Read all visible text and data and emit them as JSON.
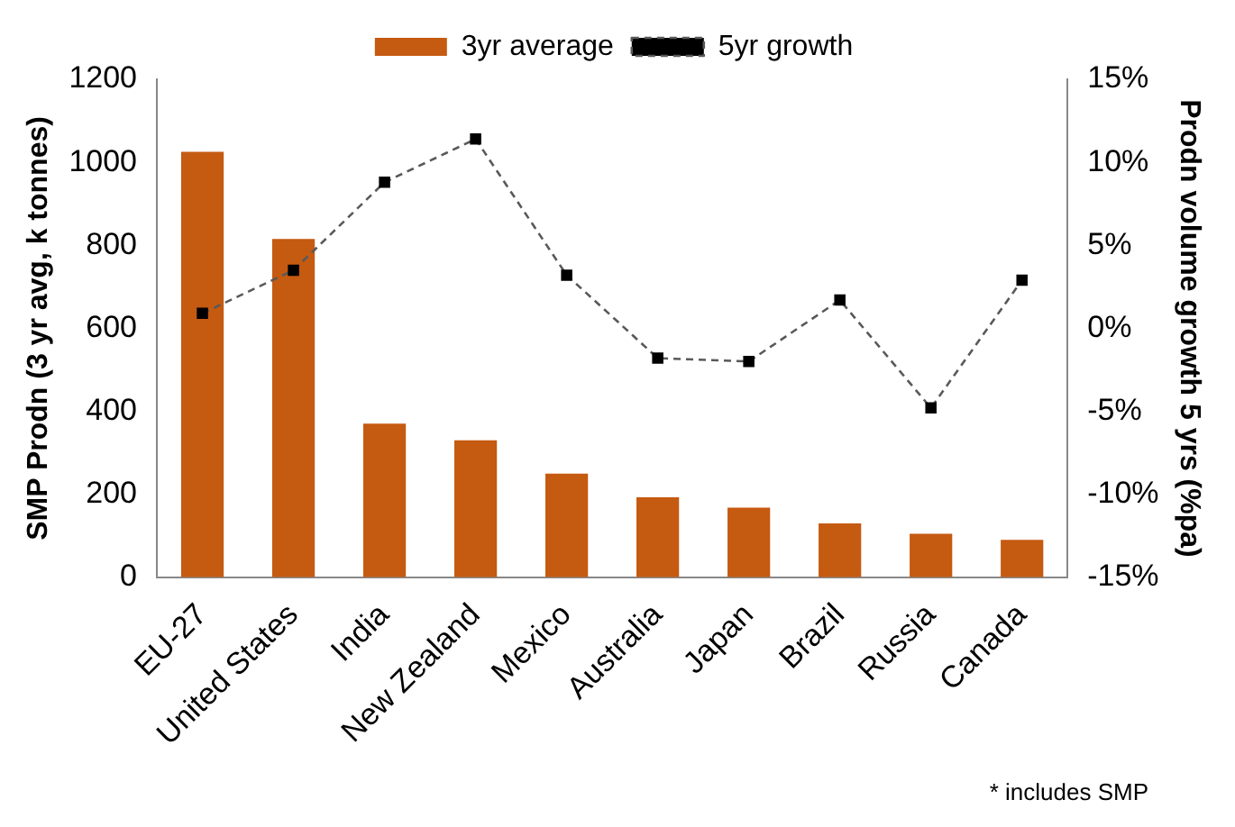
{
  "chart_data": {
    "type": "bar",
    "ylabel": "SMP Prodn (3 yr avg, k tonnes)",
    "y2label": "Prodn volume growth 5 yrs (%pa)",
    "categories": [
      "EU-27",
      "United States",
      "India",
      "New Zealand",
      "Mexico",
      "Australia",
      "Japan",
      "Brazil",
      "Russia",
      "Canada"
    ],
    "series": [
      {
        "name": "3yr average",
        "color": "#c55a11",
        "values": [
          1025,
          815,
          370,
          330,
          250,
          193,
          168,
          130,
          105,
          90
        ]
      },
      {
        "name": "5yr growth",
        "type": "line",
        "axis": "y2",
        "color": "#595959",
        "line_style": "dashed",
        "marker": "square",
        "values": [
          0.9,
          3.5,
          8.8,
          11.4,
          3.2,
          -1.8,
          -2.0,
          1.7,
          -4.8,
          2.9
        ]
      }
    ],
    "ylim": [
      0,
      1200
    ],
    "yticks": [
      0,
      200,
      400,
      600,
      800,
      1000,
      1200
    ],
    "y2lim": [
      -15,
      15
    ],
    "y2ticks": [
      {
        "value": -15,
        "label": "-15%"
      },
      {
        "value": -10,
        "label": "-10%"
      },
      {
        "value": -5,
        "label": "-5%"
      },
      {
        "value": 0,
        "label": "0%"
      },
      {
        "value": 5,
        "label": "5%"
      },
      {
        "value": 10,
        "label": "10%"
      },
      {
        "value": 15,
        "label": "15%"
      }
    ],
    "grid": false,
    "legend": "top",
    "annotations": [
      "* includes SMP"
    ]
  }
}
